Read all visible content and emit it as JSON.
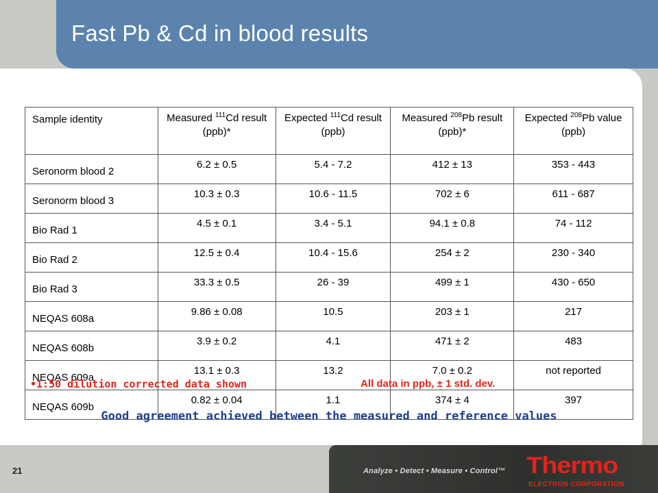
{
  "slide": {
    "title": "Fast Pb & Cd in blood results",
    "page_number": "21"
  },
  "table": {
    "headers": [
      {
        "pre": "Sample identity",
        "sup": "",
        "post": ""
      },
      {
        "pre": "Measured ",
        "sup": "111",
        "post": "Cd result (ppb)*"
      },
      {
        "pre": "Expected ",
        "sup": "111",
        "post": "Cd result (ppb)"
      },
      {
        "pre": "Measured ",
        "sup": "208",
        "post": "Pb result (ppb)*"
      },
      {
        "pre": "Expected ",
        "sup": "208",
        "post": "Pb value (ppb)"
      }
    ],
    "rows": [
      [
        "Seronorm blood 2",
        "6.2 ± 0.5",
        "5.4 - 7.2",
        "412 ± 13",
        "353 - 443"
      ],
      [
        "Seronorm blood 3",
        "10.3 ± 0.3",
        "10.6 - 11.5",
        "702 ± 6",
        "611 - 687"
      ],
      [
        "Bio Rad 1",
        "4.5 ± 0.1",
        "3.4 - 5.1",
        "94.1 ± 0.8",
        "74 - 112"
      ],
      [
        "Bio Rad 2",
        "12.5 ± 0.4",
        "10.4 - 15.6",
        "254 ± 2",
        "230 - 340"
      ],
      [
        "Bio Rad 3",
        "33.3 ± 0.5",
        "26 - 39",
        "499 ± 1",
        "430 - 650"
      ],
      [
        "NEQAS 608a",
        "9.86 ± 0.08",
        "10.5",
        "203 ± 1",
        "217"
      ],
      [
        "NEQAS 608b",
        "3.9 ± 0.2",
        "4.1",
        "471 ± 2",
        "483"
      ],
      [
        "NEQAS 609a",
        "13.1 ± 0.3",
        "13.2",
        "7.0 ± 0.2",
        "not reported"
      ],
      [
        "NEQAS 609b",
        "0.82 ± 0.04",
        "1.1",
        "374 ± 4",
        "397"
      ]
    ]
  },
  "notes": {
    "dilution": "•1:50 dilution corrected data shown",
    "units": "All data in ppb, ± 1 std. dev."
  },
  "conclusion": "Good agreement achieved between the measured and reference values",
  "footer": {
    "tagline": "Analyze • Detect • Measure • Control™",
    "logo_word": "Thermo",
    "logo_sub": "ELECTRON CORPORATION"
  },
  "colors": {
    "header_blue": "#5b83ad",
    "accent_red": "#e2231a",
    "conclusion_blue": "#1f3f8f"
  }
}
